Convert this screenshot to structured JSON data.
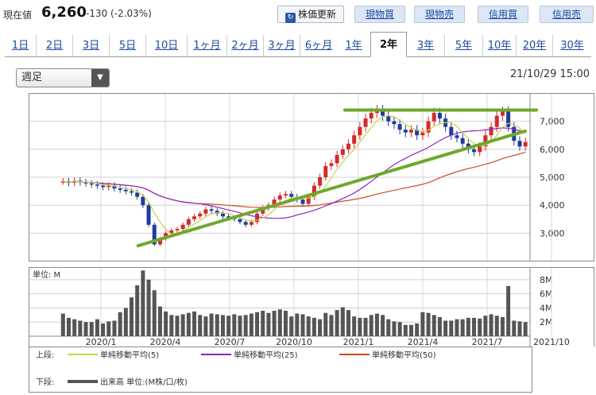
{
  "header": {
    "price_label": "現在値",
    "price": "6,260",
    "change": "-130 (-2.03%)",
    "refresh_label": "株価更新",
    "trade_buttons": [
      "現物買",
      "現物売",
      "信用買",
      "信用売"
    ]
  },
  "tabs": [
    "1日",
    "2日",
    "3日",
    "5日",
    "10日",
    "1ヶ月",
    "2ヶ月",
    "3ヶ月",
    "6ヶ月",
    "1年",
    "2年",
    "3年",
    "5年",
    "10年",
    "20年",
    "30年"
  ],
  "active_tab": "2年",
  "interval_select": "週足",
  "timestamp": "21/10/29 15:00",
  "colors": {
    "up": "#d42a2a",
    "down": "#1e3ca0",
    "ma5": "#c6d445",
    "ma25": "#8c24c0",
    "ma50": "#d04a1c",
    "trend": "#6fa82c",
    "volume": "#555555"
  },
  "chart_data": {
    "type": "candlestick",
    "x_tick_labels": [
      "2020/1",
      "2020/4",
      "2020/7",
      "2020/10",
      "2021/1",
      "2021/4",
      "2021/7",
      "2021/10"
    ],
    "price_ticks": [
      "7,000",
      "6,000",
      "5,000",
      "4,000",
      "3,000"
    ],
    "ylim": [
      2300,
      7700
    ],
    "volume_unit_label": "単位: M",
    "volume_ticks": [
      "8M",
      "6M",
      "4M",
      "2M"
    ],
    "volume_ylim": [
      0,
      9
    ],
    "start_price": 4850,
    "closes": [
      4850,
      4800,
      4870,
      4820,
      4780,
      4740,
      4700,
      4650,
      4700,
      4600,
      4550,
      4500,
      4450,
      4300,
      4000,
      3300,
      2600,
      2800,
      3000,
      3100,
      3150,
      3300,
      3500,
      3600,
      3700,
      3850,
      3800,
      3700,
      3600,
      3550,
      3500,
      3400,
      3300,
      3400,
      3700,
      3900,
      4000,
      4200,
      4350,
      4400,
      4300,
      4200,
      4050,
      4300,
      4700,
      5000,
      5400,
      5500,
      5800,
      6000,
      6200,
      6500,
      6800,
      7100,
      7300,
      7400,
      7200,
      7000,
      6900,
      6700,
      6600,
      6700,
      6500,
      6600,
      7000,
      7300,
      7100,
      6800,
      6500,
      6400,
      6200,
      6000,
      5900,
      6100,
      6500,
      6800,
      7200,
      7350,
      6800,
      6300,
      6100,
      6260
    ],
    "volumes": [
      3.2,
      2.6,
      2.4,
      2.2,
      2.0,
      2.0,
      2.4,
      1.8,
      2.1,
      2.2,
      3.4,
      4.0,
      5.5,
      7.2,
      9.3,
      8.0,
      6.5,
      4.2,
      3.5,
      3.0,
      2.9,
      3.1,
      3.3,
      3.5,
      3.0,
      2.8,
      3.2,
      3.1,
      3.0,
      2.9,
      3.1,
      2.9,
      3.0,
      3.2,
      3.4,
      3.6,
      3.3,
      3.6,
      3.8,
      3.6,
      2.8,
      3.2,
      3.1,
      2.8,
      2.6,
      2.4,
      3.3,
      3.0,
      3.7,
      4.1,
      3.7,
      2.8,
      2.6,
      2.6,
      3.0,
      3.2,
      3.0,
      2.4,
      2.1,
      2.0,
      1.6,
      1.6,
      1.8,
      3.4,
      3.3,
      3.0,
      2.7,
      2.2,
      2.2,
      2.4,
      2.4,
      2.6,
      2.6,
      2.5,
      2.9,
      3.1,
      2.9,
      2.7,
      7.1,
      2.2,
      2.1,
      2.0
    ],
    "trendlines": [
      {
        "from": [
          "2020/3",
          2550
        ],
        "to": [
          "2021/10",
          6650
        ]
      },
      {
        "from": [
          "2021/1",
          7400
        ],
        "to": [
          "2021/10",
          7400
        ]
      }
    ]
  },
  "legend": {
    "upper_label": "上段:",
    "ma5": "単純移動平均(5)",
    "ma25": "単純移動平均(25)",
    "ma50": "単純移動平均(50)",
    "lower_label": "下段:",
    "volume": "出来高 単位:(M株/口/枚)"
  }
}
